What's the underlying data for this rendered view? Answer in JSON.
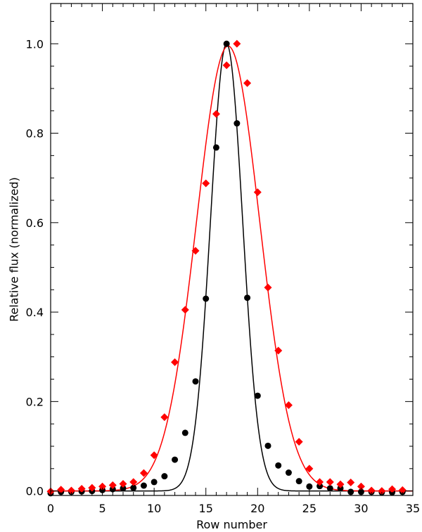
{
  "chart_data": {
    "type": "scatter",
    "title": "",
    "xlabel": "Row number",
    "ylabel": "Relative flux (normalized)",
    "xlim": [
      0,
      35
    ],
    "ylim": [
      -0.01,
      1.09
    ],
    "xticks": [
      0,
      5,
      10,
      15,
      20,
      25,
      30,
      35
    ],
    "xtick_labels": [
      "0",
      "5",
      "10",
      "15",
      "20",
      "25",
      "30",
      "35"
    ],
    "yticks": [
      0.0,
      0.2,
      0.4,
      0.6,
      0.8,
      1.0
    ],
    "ytick_labels": [
      "0.0",
      "0.2",
      "0.4",
      "0.6",
      "0.8",
      "1.0"
    ],
    "grid": false,
    "colors": {
      "black": "#000000",
      "red": "#ff0000"
    },
    "series": [
      {
        "kind": "points",
        "marker": "circle",
        "color": "#000000",
        "x": [
          0,
          1,
          2,
          3,
          4,
          5,
          6,
          7,
          8,
          9,
          10,
          11,
          12,
          13,
          14,
          15,
          16,
          17,
          18,
          19,
          20,
          21,
          22,
          23,
          24,
          25,
          26,
          27,
          28,
          29,
          30,
          31,
          32,
          33,
          34
        ],
        "y": [
          -0.005,
          -0.002,
          -0.002,
          -0.001,
          0.0,
          0.002,
          0.004,
          0.006,
          0.007,
          0.012,
          0.02,
          0.033,
          0.07,
          0.13,
          0.245,
          0.43,
          0.768,
          1.0,
          0.822,
          0.432,
          0.213,
          0.101,
          0.057,
          0.041,
          0.022,
          0.01,
          0.011,
          0.006,
          0.006,
          -0.002,
          -0.002,
          -0.002,
          -0.003,
          -0.003,
          -0.002
        ]
      },
      {
        "kind": "points",
        "marker": "diamond",
        "color": "#ff0000",
        "x": [
          0,
          1,
          2,
          3,
          4,
          5,
          6,
          7,
          8,
          9,
          10,
          11,
          12,
          13,
          14,
          15,
          16,
          17,
          18,
          19,
          20,
          21,
          22,
          23,
          24,
          25,
          26,
          27,
          28,
          29,
          30,
          31,
          32,
          33,
          34
        ],
        "y": [
          -0.001,
          0.003,
          0.001,
          0.005,
          0.007,
          0.01,
          0.013,
          0.016,
          0.02,
          0.04,
          0.08,
          0.165,
          0.288,
          0.405,
          0.537,
          0.688,
          0.843,
          0.952,
          1.0,
          0.912,
          0.668,
          0.455,
          0.314,
          0.192,
          0.11,
          0.05,
          0.02,
          0.02,
          0.015,
          0.019,
          0.01,
          0.001,
          0.0,
          0.004,
          0.002
        ]
      },
      {
        "kind": "curve",
        "shape": "gaussian",
        "color": "#000000",
        "amplitude": 1.0,
        "center": 17.0,
        "sigma": 1.55
      },
      {
        "kind": "curve",
        "shape": "gaussian",
        "color": "#ff0000",
        "amplitude": 0.995,
        "center": 17.15,
        "sigma": 3.05
      }
    ]
  }
}
